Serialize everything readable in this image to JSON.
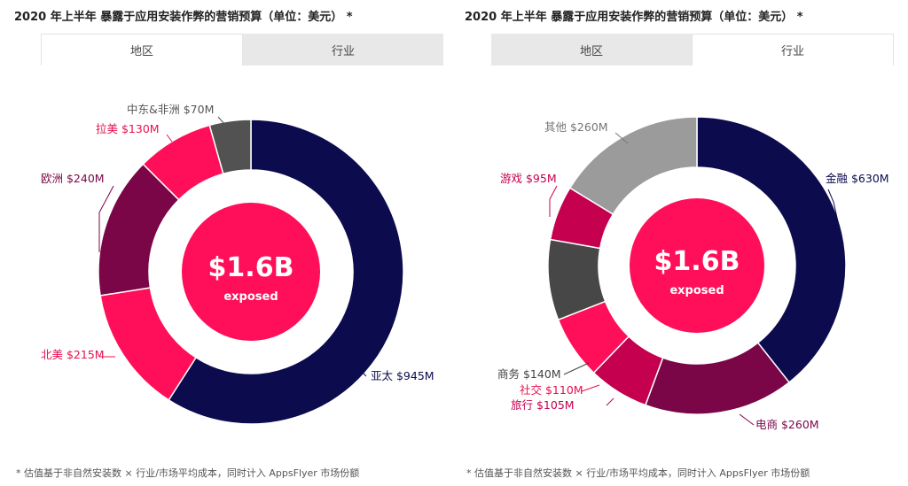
{
  "charts": [
    {
      "title": "2020 年上半年 暴露于应用安装作弊的营销预算（单位：美元） *",
      "tabs": [
        {
          "label": "地区",
          "active": true
        },
        {
          "label": "行业",
          "active": false
        }
      ],
      "footnote": "* 估值基于非自然安装数 × 行业/市场平均成本，同时计入 AppsFlyer 市场份额"
    },
    {
      "title": "2020 年上半年 暴露于应用安装作弊的营销预算（单位：美元） *",
      "tabs": [
        {
          "label": "地区",
          "active": false
        },
        {
          "label": "行业",
          "active": true
        }
      ],
      "footnote": "* 估值基于非自然安装数 × 行业/市场平均成本，同时计入 AppsFlyer 市场份额"
    }
  ],
  "chart_data": [
    {
      "type": "pie",
      "center_value": "$1.6B",
      "center_label": "exposed",
      "slices": [
        {
          "label": "亚太",
          "value": 945,
          "display": "$945M",
          "color": "#0b0b4e"
        },
        {
          "label": "北美",
          "value": 215,
          "display": "$215M",
          "color": "#ff0f59"
        },
        {
          "label": "欧洲",
          "value": 240,
          "display": "$240M",
          "color": "#7a0648"
        },
        {
          "label": "拉美",
          "value": 130,
          "display": "$130M",
          "color": "#ff0f59"
        },
        {
          "label": "中东&非洲",
          "value": 70,
          "display": "$70M",
          "color": "#525252"
        }
      ]
    },
    {
      "type": "pie",
      "center_value": "$1.6B",
      "center_label": "exposed",
      "slices": [
        {
          "label": "金融",
          "value": 630,
          "display": "$630M",
          "color": "#0b0b4e"
        },
        {
          "label": "电商",
          "value": 260,
          "display": "$260M",
          "color": "#7a0648"
        },
        {
          "label": "旅行",
          "value": 105,
          "display": "$105M",
          "color": "#c4004f"
        },
        {
          "label": "社交",
          "value": 110,
          "display": "$110M",
          "color": "#ff0f59"
        },
        {
          "label": "商务",
          "value": 140,
          "display": "$140M",
          "color": "#474747"
        },
        {
          "label": "游戏",
          "value": 95,
          "display": "$95M",
          "color": "#c4004f"
        },
        {
          "label": "其他",
          "value": 260,
          "display": "$260M",
          "color": "#9b9b9b"
        }
      ]
    }
  ]
}
